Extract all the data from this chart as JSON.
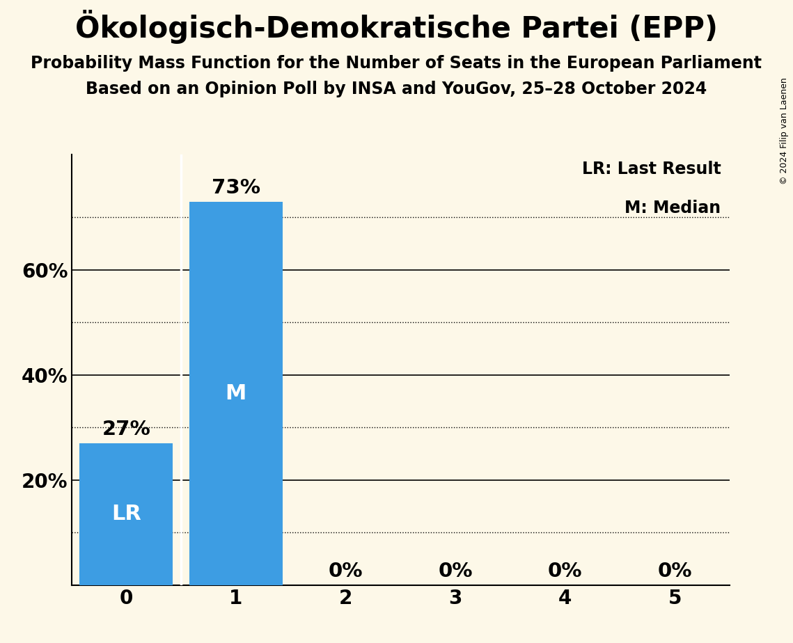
{
  "title": "Ökologisch-Demokratische Partei (EPP)",
  "subtitle1": "Probability Mass Function for the Number of Seats in the European Parliament",
  "subtitle2": "Based on an Opinion Poll by INSA and YouGov, 25–28 October 2024",
  "copyright": "© 2024 Filip van Laenen",
  "categories": [
    0,
    1,
    2,
    3,
    4,
    5
  ],
  "values": [
    0.27,
    0.73,
    0.0,
    0.0,
    0.0,
    0.0
  ],
  "labels": [
    "27%",
    "73%",
    "0%",
    "0%",
    "0%",
    "0%"
  ],
  "bar_color": "#3d9de3",
  "background_color": "#fdf8e8",
  "bar_label_color_outside": "#000000",
  "lr_seat": 0,
  "median_seat": 1,
  "lr_label": "LR",
  "median_label": "M",
  "legend_lr": "LR: Last Result",
  "legend_m": "M: Median",
  "ylabel_ticks": [
    "20%",
    "40%",
    "60%"
  ],
  "yticks": [
    0.2,
    0.4,
    0.6
  ],
  "solid_lines": [
    0.2,
    0.4,
    0.6
  ],
  "dotted_lines": [
    0.1,
    0.3,
    0.5,
    0.7
  ],
  "ylim": [
    0,
    0.82
  ],
  "title_fontsize": 30,
  "subtitle_fontsize": 17,
  "bar_label_fontsize": 21,
  "axis_tick_fontsize": 20,
  "legend_fontsize": 17,
  "inner_label_fontsize": 22,
  "copyright_fontsize": 9
}
